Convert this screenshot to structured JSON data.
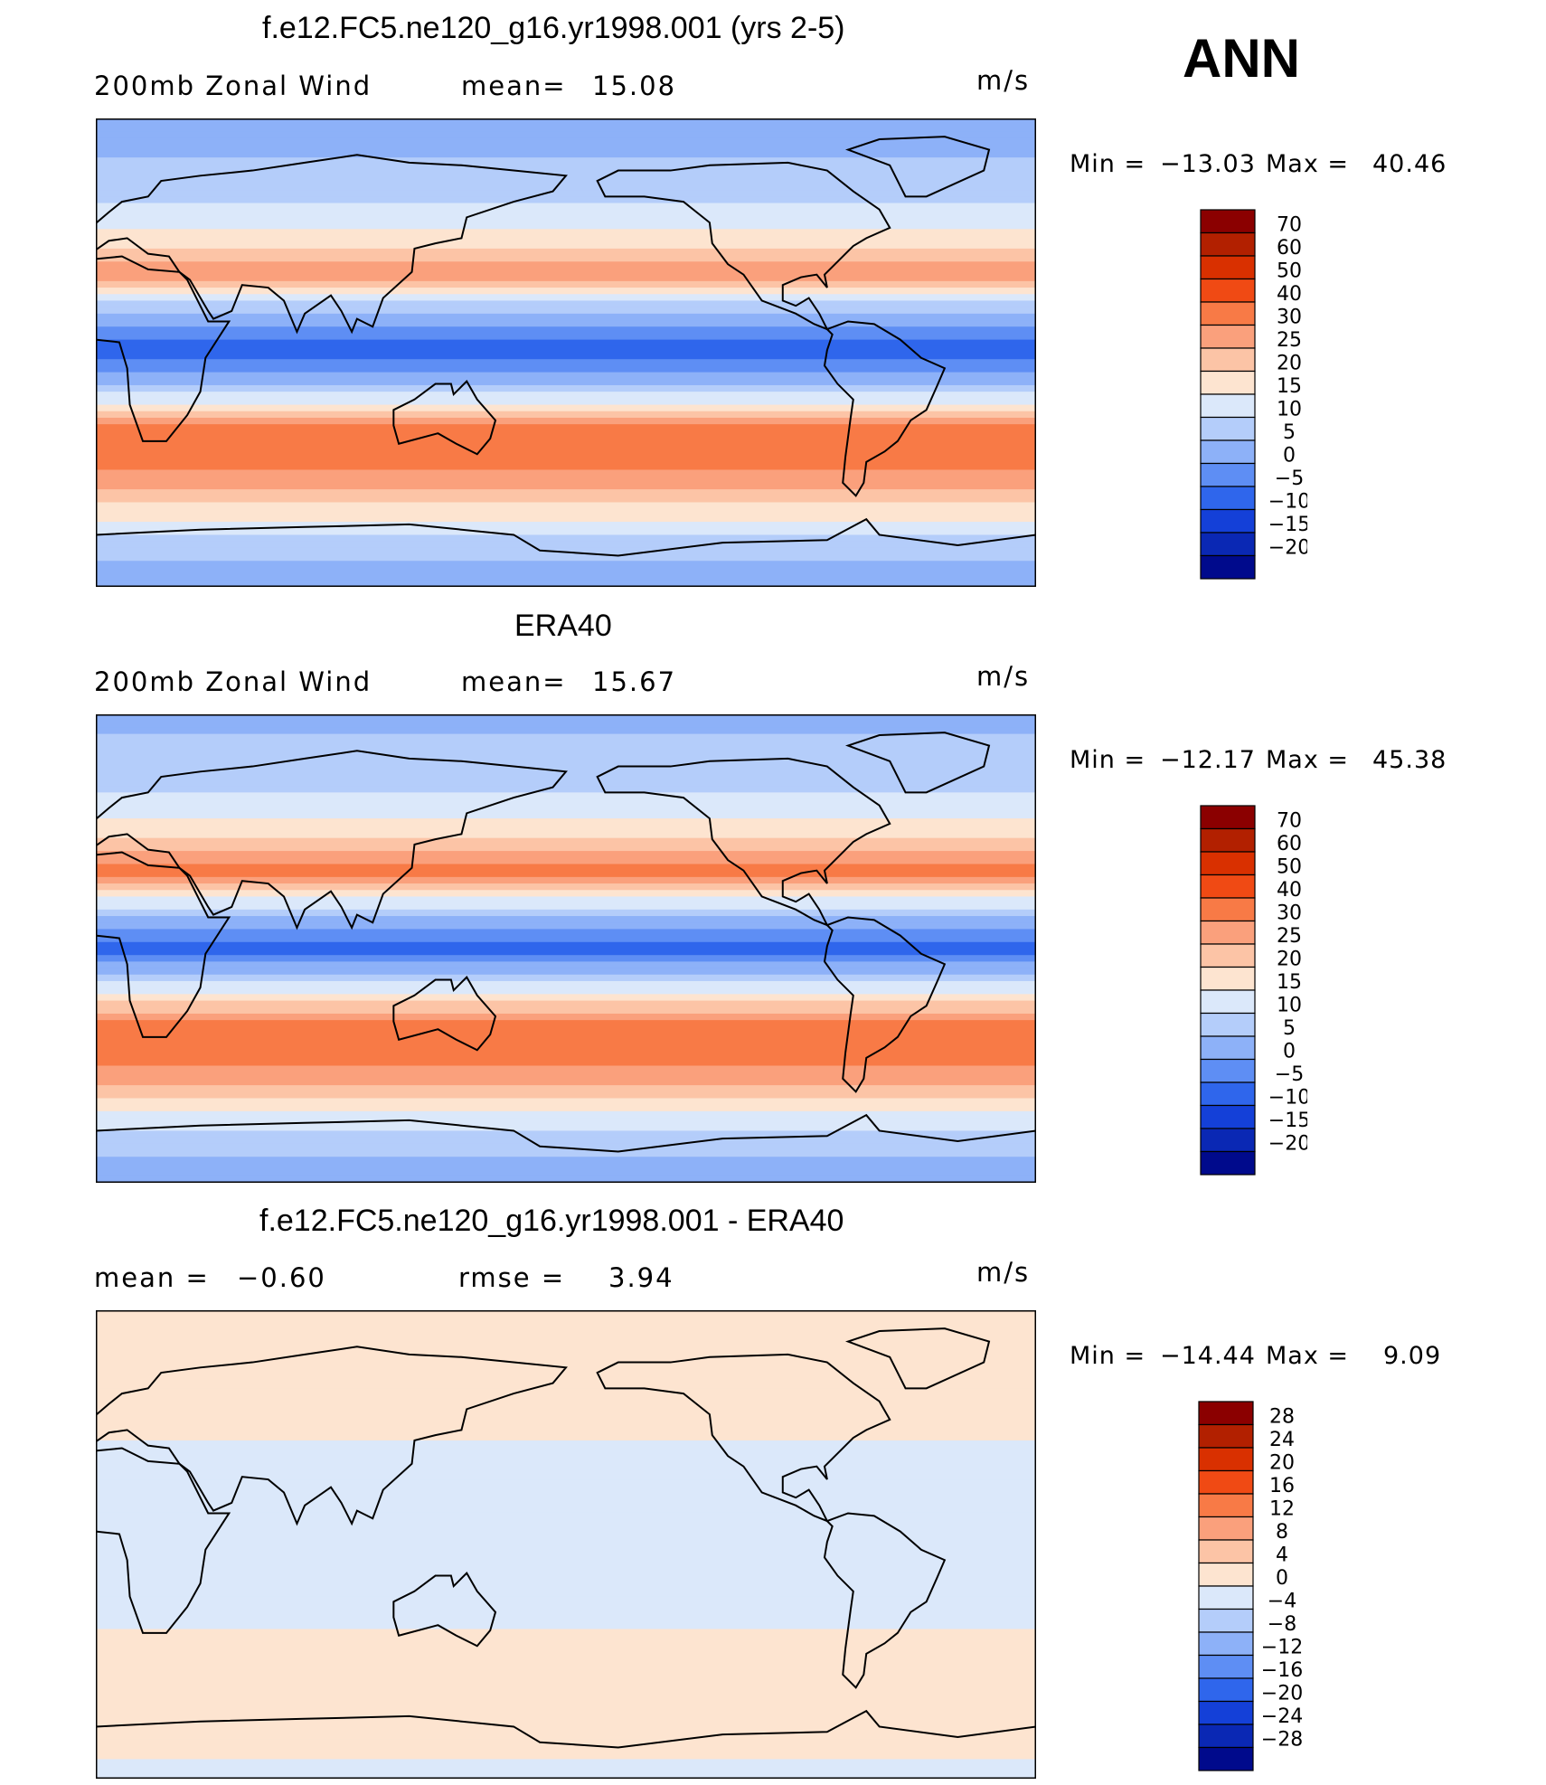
{
  "season": "ANN",
  "panels": [
    {
      "title": "f.e12.FC5.ne120_g16.yr1998.001 (yrs 2-5)",
      "left_label": "200mb Zonal Wind",
      "stat_label": "mean=",
      "stat_value": "15.08",
      "units": "m/s",
      "min_label": "Min =",
      "min_value": "−13.03",
      "max_label": "Max =",
      "max_value": "40.46"
    },
    {
      "title": "ERA40",
      "left_label": "200mb Zonal Wind",
      "stat_label": "mean=",
      "stat_value": "15.67",
      "units": "m/s",
      "min_label": "Min =",
      "min_value": "−12.17",
      "max_label": "Max =",
      "max_value": "45.38"
    },
    {
      "title": "f.e12.FC5.ne120_g16.yr1998.001 - ERA40",
      "left_label": "mean =",
      "left_value": "−0.60",
      "stat_label": "rmse =",
      "stat_value": "3.94",
      "units": "m/s",
      "min_label": "Min =",
      "min_value": "−14.44",
      "max_label": "Max =",
      "max_value": "9.09"
    }
  ],
  "chart_data": [
    {
      "type": "heatmap",
      "title": "f.e12.FC5.ne120_g16.yr1998.001 (yrs 2-5)",
      "variable": "200mb Zonal Wind",
      "units": "m/s",
      "mean": 15.08,
      "min": -13.03,
      "max": 40.46,
      "colorbar_levels": [
        70,
        60,
        50,
        40,
        30,
        25,
        20,
        15,
        10,
        5,
        0,
        -5,
        -10,
        -15,
        -20
      ],
      "colorbar_colors": [
        "#8b0000",
        "#b22000",
        "#d93000",
        "#f04a14",
        "#f87a46",
        "#faa07c",
        "#fcc4a6",
        "#fde4d0",
        "#dbe8fa",
        "#b4cdfa",
        "#8db1f8",
        "#5e8ef4",
        "#2f66ec",
        "#1440d8",
        "#0a28b4",
        "#000a8c"
      ],
      "field_rows_south_to_north": [
        {
          "lat": -90,
          "u": 2
        },
        {
          "lat": -75,
          "u": 7
        },
        {
          "lat": -60,
          "u": 18
        },
        {
          "lat": -45,
          "u": 30
        },
        {
          "lat": -30,
          "u": 32
        },
        {
          "lat": -15,
          "u": 8
        },
        {
          "lat": 0,
          "u": -8
        },
        {
          "lat": 15,
          "u": 3
        },
        {
          "lat": 30,
          "u": 28
        },
        {
          "lat": 45,
          "u": 16
        },
        {
          "lat": 60,
          "u": 9
        },
        {
          "lat": 75,
          "u": 5
        },
        {
          "lat": 90,
          "u": 3
        }
      ]
    },
    {
      "type": "heatmap",
      "title": "ERA40",
      "variable": "200mb Zonal Wind",
      "units": "m/s",
      "mean": 15.67,
      "min": -12.17,
      "max": 45.38,
      "colorbar_levels": [
        70,
        60,
        50,
        40,
        30,
        25,
        20,
        15,
        10,
        5,
        0,
        -5,
        -10,
        -15,
        -20
      ],
      "colorbar_colors": [
        "#8b0000",
        "#b22000",
        "#d93000",
        "#f04a14",
        "#f87a46",
        "#faa07c",
        "#fcc4a6",
        "#fde4d0",
        "#dbe8fa",
        "#b4cdfa",
        "#8db1f8",
        "#5e8ef4",
        "#2f66ec",
        "#1440d8",
        "#0a28b4",
        "#000a8c"
      ],
      "field_rows_south_to_north": [
        {
          "lat": -90,
          "u": 2
        },
        {
          "lat": -75,
          "u": 6
        },
        {
          "lat": -60,
          "u": 17
        },
        {
          "lat": -45,
          "u": 31
        },
        {
          "lat": -30,
          "u": 34
        },
        {
          "lat": -15,
          "u": 12
        },
        {
          "lat": 0,
          "u": -7
        },
        {
          "lat": 15,
          "u": 8
        },
        {
          "lat": 30,
          "u": 33
        },
        {
          "lat": 45,
          "u": 18
        },
        {
          "lat": 60,
          "u": 10
        },
        {
          "lat": 75,
          "u": 6
        },
        {
          "lat": 90,
          "u": 4
        }
      ]
    },
    {
      "type": "heatmap",
      "title": "f.e12.FC5.ne120_g16.yr1998.001 - ERA40",
      "units": "m/s",
      "mean": -0.6,
      "rmse": 3.94,
      "min": -14.44,
      "max": 9.09,
      "colorbar_levels": [
        28,
        24,
        20,
        16,
        12,
        8,
        4,
        0,
        -4,
        -8,
        -12,
        -16,
        -20,
        -24,
        -28
      ],
      "colorbar_colors": [
        "#8b0000",
        "#b22000",
        "#d93000",
        "#f04a14",
        "#f87a46",
        "#faa07c",
        "#fcc4a6",
        "#fde4d0",
        "#dbe8fa",
        "#b4cdfa",
        "#8db1f8",
        "#5e8ef4",
        "#2f66ec",
        "#1440d8",
        "#0a28b4",
        "#000a8c"
      ],
      "field_rows_south_to_north": [
        {
          "lat": -90,
          "u": -1
        },
        {
          "lat": -75,
          "u": 1
        },
        {
          "lat": -60,
          "u": 2
        },
        {
          "lat": -45,
          "u": 3
        },
        {
          "lat": -30,
          "u": -1
        },
        {
          "lat": -15,
          "u": -3
        },
        {
          "lat": 0,
          "u": -3
        },
        {
          "lat": 15,
          "u": -2
        },
        {
          "lat": 30,
          "u": -4
        },
        {
          "lat": 45,
          "u": 2
        },
        {
          "lat": 60,
          "u": 1
        },
        {
          "lat": 75,
          "u": 2
        },
        {
          "lat": 90,
          "u": 1
        }
      ]
    }
  ]
}
